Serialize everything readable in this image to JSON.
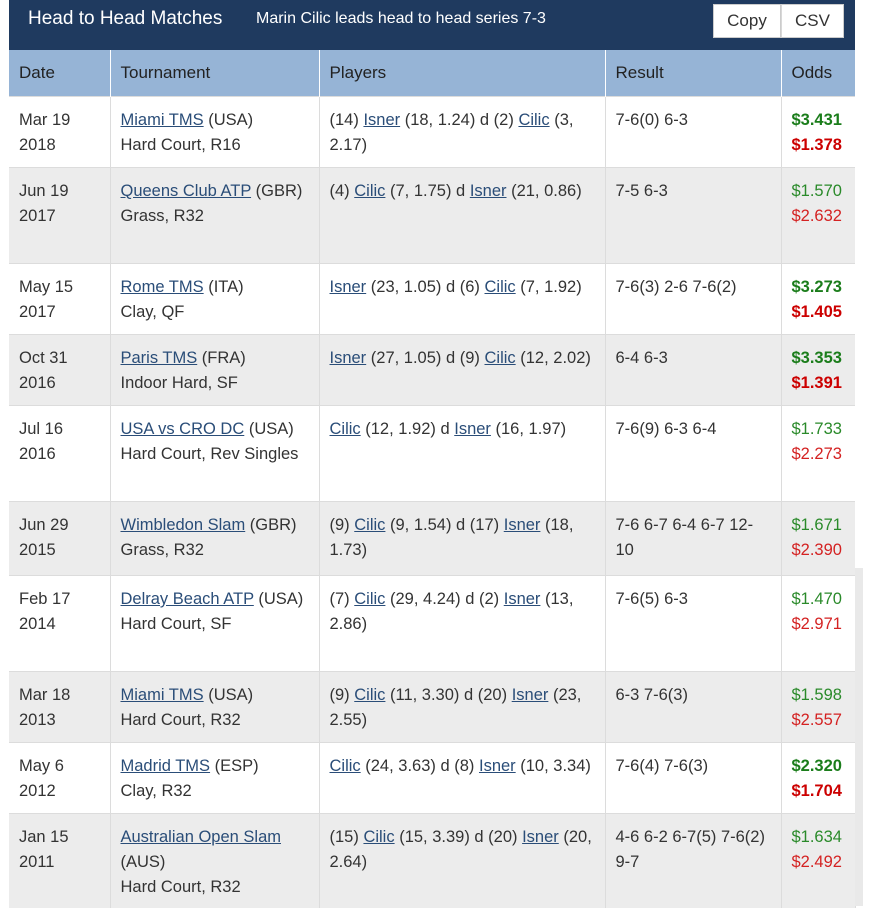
{
  "header": {
    "title": "Head to Head Matches",
    "subtitle": "Marin Cilic leads head to head series 7-3",
    "copy_label": "Copy",
    "csv_label": "CSV"
  },
  "columns": [
    "Date",
    "Tournament",
    "Players",
    "Result",
    "Odds"
  ],
  "rows": [
    {
      "date1": "Mar 19",
      "date2": "2018",
      "tourn": "Miami TMS",
      "country": " (USA)",
      "surface": "Hard Court, R16",
      "p_pre": "(14) ",
      "p1": "Isner",
      "p_mid": " (18, 1.24) d (2) ",
      "p2": "Cilic",
      "p_post": " (3, 2.17)",
      "result": "7-6(0) 6-3",
      "odd1": "$3.431",
      "odd2": "$1.378",
      "bold": true
    },
    {
      "date1": "Jun 19",
      "date2": "2017",
      "tourn": "Queens Club ATP",
      "country": " (GBR)",
      "surface": "Grass, R32",
      "p_pre": "(4) ",
      "p1": "Cilic",
      "p_mid": " (7, 1.75) d ",
      "p2": "Isner",
      "p_post": " (21, 0.86)",
      "result": "7-5 6-3",
      "odd1": "$1.570",
      "odd2": "$2.632",
      "bold": false
    },
    {
      "date1": "May 15",
      "date2": "2017",
      "tourn": "Rome TMS",
      "country": " (ITA)",
      "surface": "Clay, QF",
      "p_pre": "",
      "p1": "Isner",
      "p_mid": " (23, 1.05) d (6) ",
      "p2": "Cilic",
      "p_post": " (7, 1.92)",
      "result": "7-6(3) 2-6 7-6(2)",
      "odd1": "$3.273",
      "odd2": "$1.405",
      "bold": true
    },
    {
      "date1": "Oct 31",
      "date2": "2016",
      "tourn": "Paris TMS",
      "country": " (FRA)",
      "surface": "Indoor Hard, SF",
      "p_pre": "",
      "p1": "Isner",
      "p_mid": " (27, 1.05) d (9) ",
      "p2": "Cilic",
      "p_post": " (12, 2.02)",
      "result": "6-4 6-3",
      "odd1": "$3.353",
      "odd2": "$1.391",
      "bold": true
    },
    {
      "date1": "Jul 16",
      "date2": "2016",
      "tourn": "USA vs CRO DC",
      "country": " (USA)",
      "surface": "Hard Court, Rev Singles",
      "p_pre": "",
      "p1": "Cilic",
      "p_mid": " (12, 1.92) d ",
      "p2": "Isner",
      "p_post": " (16, 1.97)",
      "result": "7-6(9) 6-3 6-4",
      "odd1": "$1.733",
      "odd2": "$2.273",
      "bold": false
    },
    {
      "date1": "Jun 29",
      "date2": "2015",
      "tourn": "Wimbledon Slam",
      "country": " (GBR)",
      "surface": "Grass, R32",
      "p_pre": "(9) ",
      "p1": "Cilic",
      "p_mid": " (9, 1.54) d (17) ",
      "p2": "Isner",
      "p_post": " (18, 1.73)",
      "result": "7-6 6-7 6-4 6-7 12-10",
      "odd1": "$1.671",
      "odd2": "$2.390",
      "bold": false
    },
    {
      "date1": "Feb 17",
      "date2": "2014",
      "tourn": "Delray Beach ATP",
      "country": " (USA)",
      "surface": "Hard Court, SF",
      "p_pre": "(7) ",
      "p1": "Cilic",
      "p_mid": " (29, 4.24) d (2) ",
      "p2": "Isner",
      "p_post": " (13, 2.86)",
      "result": "7-6(5) 6-3",
      "odd1": "$1.470",
      "odd2": "$2.971",
      "bold": false
    },
    {
      "date1": "Mar 18",
      "date2": "2013",
      "tourn": "Miami TMS",
      "country": " (USA)",
      "surface": "Hard Court, R32",
      "p_pre": "(9) ",
      "p1": "Cilic",
      "p_mid": " (11, 3.30) d (20) ",
      "p2": "Isner",
      "p_post": " (23, 2.55)",
      "result": "6-3 7-6(3)",
      "odd1": "$1.598",
      "odd2": "$2.557",
      "bold": false
    },
    {
      "date1": "May 6",
      "date2": "2012",
      "tourn": "Madrid TMS",
      "country": " (ESP)",
      "surface": "Clay, R32",
      "p_pre": "",
      "p1": "Cilic",
      "p_mid": " (24, 3.63) d (8) ",
      "p2": "Isner",
      "p_post": " (10, 3.34)",
      "result": "7-6(4) 7-6(3)",
      "odd1": "$2.320",
      "odd2": "$1.704",
      "bold": true
    },
    {
      "date1": "Jan 15",
      "date2": "2011",
      "tourn": "Australian Open Slam",
      "country": " (AUS)",
      "surface": "Hard Court, R32",
      "p_pre": "(15) ",
      "p1": "Cilic",
      "p_mid": " (15, 3.39) d (20) ",
      "p2": "Isner",
      "p_post": " (20, 2.64)",
      "result": "4-6 6-2 6-7(5) 7-6(2) 9-7",
      "odd1": "$1.634",
      "odd2": "$2.492",
      "bold": false
    }
  ],
  "colors": {
    "header_bg": "#1f3a5f",
    "thead_bg": "#96b4d6",
    "row_alt": "#ececec",
    "odds_win": "#2a8a2a",
    "odds_lose": "#d42222",
    "link": "#2a4d78"
  }
}
